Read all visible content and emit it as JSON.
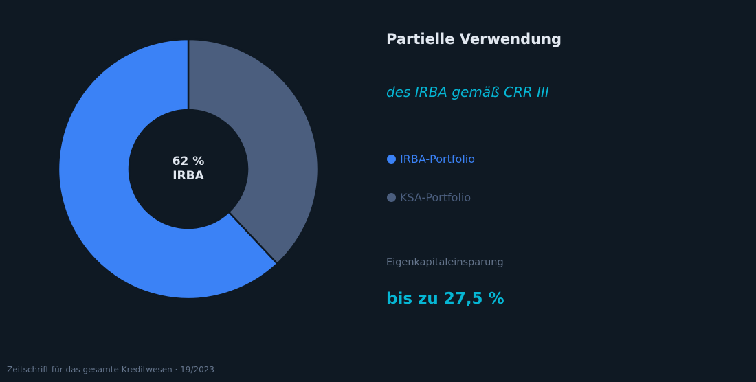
{
  "header": {
    "title": "Partielle Verwendung",
    "subtitle": "des IRBA gemäß CRR III"
  },
  "donut": {
    "center_value": "62 %",
    "center_label": "IRBA"
  },
  "legend": {
    "items": [
      {
        "label": "IRBA-Portfolio",
        "color": "#3b82f6"
      },
      {
        "label": "KSA-Portfolio",
        "color": "#4b5e7e"
      }
    ]
  },
  "kpi": {
    "label": "Eigenkapitaleinsparung",
    "value": "bis zu 27,5 %"
  },
  "footer": {
    "source": "Zeitschrift für das gesamte Kreditwesen · 19/2023"
  },
  "colors": {
    "background": "#0f1923",
    "irba": "#3b82f6",
    "ksa": "#4b5e7e",
    "accent": "#06b6d4",
    "title": "#e2e8f0",
    "muted": "#64748b"
  },
  "chart_data": {
    "type": "pie",
    "variant": "donut",
    "title": "Partielle Verwendung des IRBA gemäß CRR III",
    "categories": [
      "IRBA-Portfolio",
      "KSA-Portfolio"
    ],
    "values": [
      62,
      38
    ],
    "unit": "%",
    "colors": [
      "#3b82f6",
      "#4b5e7e"
    ],
    "center_annotation": "62 % IRBA",
    "legend_position": "right",
    "annotations": [
      "Eigenkapitaleinsparung bis zu 27,5 %"
    ]
  }
}
